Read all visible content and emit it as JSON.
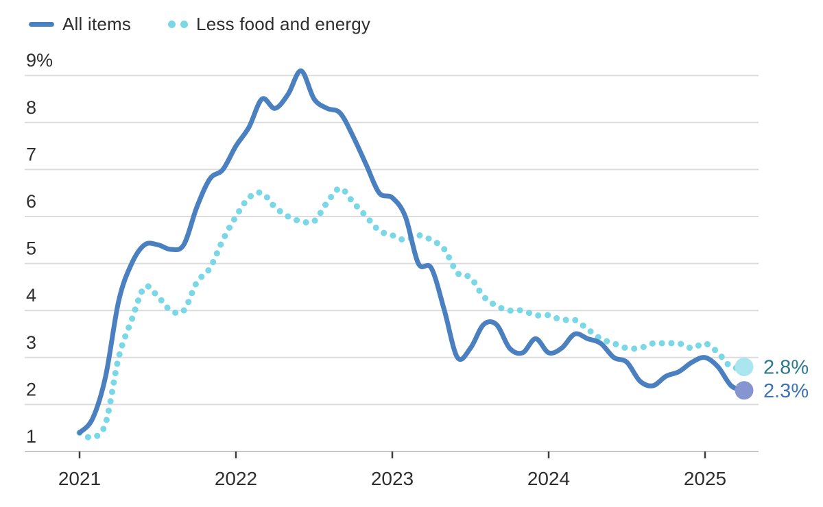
{
  "legend": {
    "items": [
      {
        "label": "All items",
        "swatch": "solid-line"
      },
      {
        "label": "Less food and energy",
        "swatch": "dots"
      }
    ]
  },
  "chart_data": {
    "type": "line",
    "title": "",
    "xlabel": "",
    "ylabel": "",
    "ylim": [
      1,
      9
    ],
    "grid": "horizontal",
    "x": [
      "Jan 2021",
      "Feb 2021",
      "Mar 2021",
      "Apr 2021",
      "May 2021",
      "Jun 2021",
      "Jul 2021",
      "Aug 2021",
      "Sep 2021",
      "Oct 2021",
      "Nov 2021",
      "Dec 2021",
      "Jan 2022",
      "Feb 2022",
      "Mar 2022",
      "Apr 2022",
      "May 2022",
      "Jun 2022",
      "Jul 2022",
      "Aug 2022",
      "Sep 2022",
      "Oct 2022",
      "Nov 2022",
      "Dec 2022",
      "Jan 2023",
      "Feb 2023",
      "Mar 2023",
      "Apr 2023",
      "May 2023",
      "Jun 2023",
      "Jul 2023",
      "Aug 2023",
      "Sep 2023",
      "Oct 2023",
      "Nov 2023",
      "Dec 2023",
      "Jan 2024",
      "Feb 2024",
      "Mar 2024",
      "Apr 2024",
      "May 2024",
      "Jun 2024",
      "Jul 2024",
      "Aug 2024",
      "Sep 2024",
      "Oct 2024",
      "Nov 2024",
      "Dec 2024",
      "Jan 2025",
      "Feb 2025",
      "Mar 2025",
      "Apr 2025"
    ],
    "x_ticks": [
      {
        "label": "2021",
        "month_index": 0
      },
      {
        "label": "2022",
        "month_index": 12
      },
      {
        "label": "2023",
        "month_index": 24
      },
      {
        "label": "2024",
        "month_index": 36
      },
      {
        "label": "2025",
        "month_index": 48
      }
    ],
    "y_ticks": [
      {
        "value": 9,
        "label": "9%"
      },
      {
        "value": 8,
        "label": "8"
      },
      {
        "value": 7,
        "label": "7"
      },
      {
        "value": 6,
        "label": "6"
      },
      {
        "value": 5,
        "label": "5"
      },
      {
        "value": 4,
        "label": "4"
      },
      {
        "value": 3,
        "label": "3"
      },
      {
        "value": 2,
        "label": "2"
      },
      {
        "value": 1,
        "label": "1"
      }
    ],
    "series": [
      {
        "name": "All items",
        "style": "solid",
        "color": "#4b80c0",
        "end_dot_color": "#8495cf",
        "end_label": "2.3%",
        "end_label_color": "#3c73b9",
        "values": [
          1.4,
          1.7,
          2.6,
          4.2,
          5.0,
          5.4,
          5.4,
          5.3,
          5.4,
          6.2,
          6.8,
          7.0,
          7.5,
          7.9,
          8.5,
          8.3,
          8.6,
          9.1,
          8.5,
          8.3,
          8.2,
          7.7,
          7.1,
          6.5,
          6.4,
          6.0,
          5.0,
          4.9,
          4.0,
          3.0,
          3.2,
          3.7,
          3.7,
          3.2,
          3.1,
          3.4,
          3.1,
          3.2,
          3.5,
          3.4,
          3.3,
          3.0,
          2.9,
          2.5,
          2.4,
          2.6,
          2.7,
          2.9,
          3.0,
          2.8,
          2.4,
          2.3
        ]
      },
      {
        "name": "Less food and energy",
        "style": "dotted",
        "color": "#7ad7e6",
        "end_dot_color": "#a9e6f0",
        "end_label": "2.8%",
        "end_label_color": "#2a7b8d",
        "values": [
          1.4,
          1.3,
          1.6,
          3.0,
          3.8,
          4.5,
          4.3,
          4.0,
          4.0,
          4.6,
          4.9,
          5.5,
          6.0,
          6.4,
          6.5,
          6.2,
          6.0,
          5.9,
          5.9,
          6.3,
          6.6,
          6.3,
          6.0,
          5.7,
          5.6,
          5.5,
          5.6,
          5.5,
          5.3,
          4.8,
          4.7,
          4.3,
          4.1,
          4.0,
          4.0,
          3.9,
          3.9,
          3.8,
          3.8,
          3.6,
          3.4,
          3.3,
          3.2,
          3.2,
          3.3,
          3.3,
          3.3,
          3.2,
          3.3,
          3.1,
          2.8,
          2.8
        ]
      }
    ],
    "colors": {
      "gridline": "#dcdcdc",
      "axis_line": "#c6c6c6",
      "tick_mark": "#3c3c3c",
      "text": "#2e2e2e"
    }
  }
}
